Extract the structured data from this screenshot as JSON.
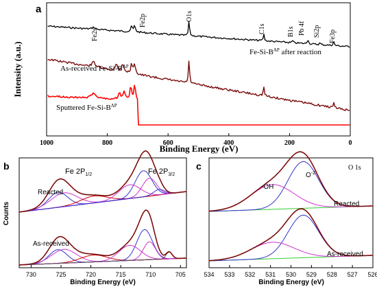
{
  "chart_data": [
    {
      "panel": "a",
      "type": "line",
      "xlabel": "Binding Energy (eV)",
      "ylabel": "Intensity (a.u.)",
      "xlim": [
        1000,
        0
      ],
      "x_ticks": [
        "1000",
        "800",
        "600",
        "400",
        "200",
        "0"
      ],
      "peak_labels": [
        "Fe2s",
        "Fe2p",
        "O1s",
        "C1s",
        "B1s",
        "Pb 4f",
        "Si2p",
        "Fe3p"
      ],
      "series": [
        {
          "name": "Fe-Si-Bᴬᴾ after reaction",
          "color": "#000000"
        },
        {
          "name": "As-received Fe-Si-Bᴬᴾ",
          "color": "#7a0a0a"
        },
        {
          "name": "Sputtered Fe-Si-Bᴬᴾ",
          "color": "#ff0000"
        }
      ]
    },
    {
      "panel": "b",
      "type": "line",
      "xlabel": "Binding Energy (eV)",
      "ylabel": "Counts",
      "xlim": [
        732,
        704
      ],
      "x_ticks": [
        "730",
        "725",
        "720",
        "715",
        "710",
        "705"
      ],
      "annotations": [
        "Fe 2P₁/₂",
        "Fe 2P₃/₂"
      ],
      "series": [
        {
          "name": "Reacted"
        },
        {
          "name": "As-received"
        }
      ],
      "fit_colors": [
        "#cc0000",
        "#3333cc",
        "#cc33cc",
        "#33cc33",
        "#555555"
      ]
    },
    {
      "panel": "c",
      "type": "line",
      "xlabel": "Binding Energy (eV)",
      "ylabel": "",
      "title": "O 1s",
      "xlim": [
        534,
        526
      ],
      "x_ticks": [
        "534",
        "533",
        "532",
        "531",
        "530",
        "529",
        "528",
        "527",
        "526"
      ],
      "annotations": [
        "-OH",
        "O⁻²"
      ],
      "series": [
        {
          "name": "Reacted"
        },
        {
          "name": "As-received"
        }
      ],
      "fit_colors": [
        "#cc0000",
        "#3333cc",
        "#cc33cc",
        "#33cc33"
      ]
    }
  ],
  "labels": {
    "panel_a": "a",
    "panel_b": "b",
    "panel_c": "c",
    "a_ylabel": "Intensity (a.u.)",
    "a_xlabel": "Binding Energy (eV)",
    "a_peaks": [
      "Fe2s",
      "Fe2p",
      "O1s",
      "C1s",
      "B1s",
      "Pb 4f",
      "Si2p",
      "Fe3p"
    ],
    "a_legend_top": "Fe-Si-B",
    "a_legend_top_sup": "AP",
    "a_legend_top_suffix": " after reaction",
    "a_legend_mid": "As-received Fe-Si-B",
    "a_legend_mid_sup": "AP",
    "a_legend_bot": "Sputtered Fe-Si-B",
    "a_legend_bot_sup": "AP",
    "b_ylabel": "Counts",
    "b_xlabel": "Binding Energy (eV)",
    "b_ann_left": "Fe 2P",
    "b_ann_left_sub": "1/2",
    "b_ann_right": "Fe 2P",
    "b_ann_right_sub": "3/2",
    "b_reacted": "Reacted",
    "b_asreceived": "As-received",
    "c_xlabel": "Binding Energy (eV)",
    "c_title": "O 1s",
    "c_oh": "-OH",
    "c_o2": "O",
    "c_o2_sup": "-2",
    "c_reacted": "Reacted",
    "c_asreceived": "As-received"
  }
}
